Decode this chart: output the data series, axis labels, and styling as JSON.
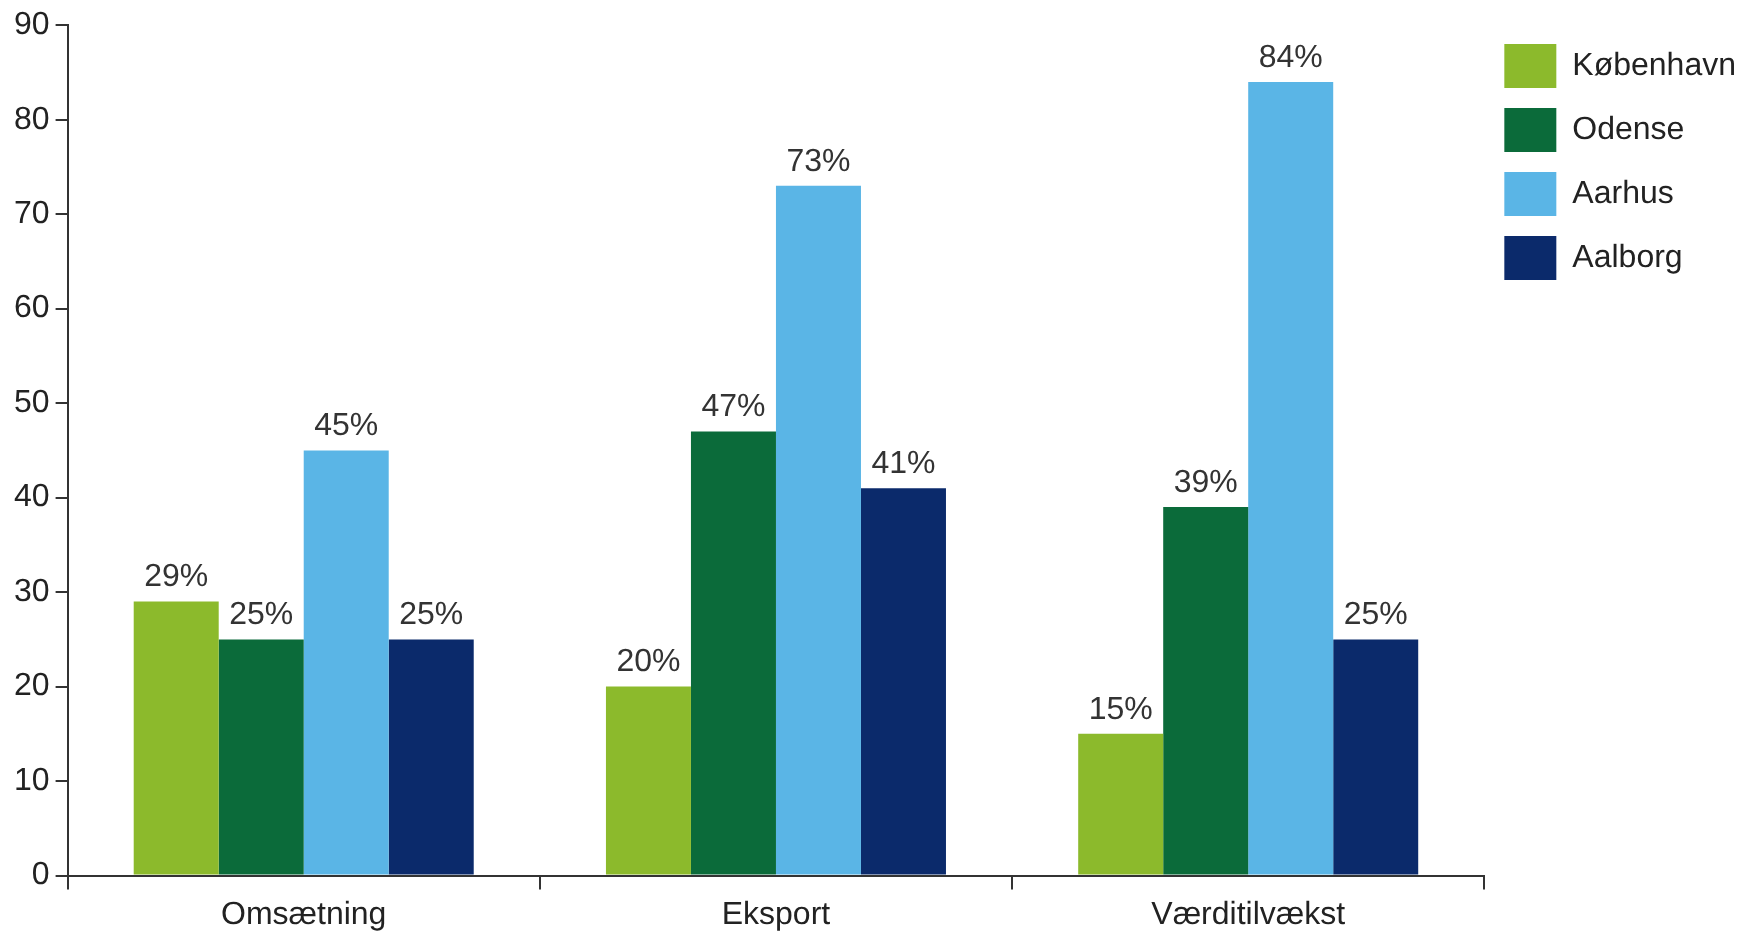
{
  "chart_data": {
    "type": "bar",
    "categories": [
      "Omsætning",
      "Eksport",
      "Værditilvækst"
    ],
    "series": [
      {
        "name": "København",
        "color": "#8cba2c",
        "values": [
          29,
          20,
          15
        ],
        "value_labels": [
          "29%",
          "20%",
          "15%"
        ]
      },
      {
        "name": "Odense",
        "color": "#0b6b3a",
        "values": [
          25,
          47,
          39
        ],
        "value_labels": [
          "25%",
          "47%",
          "39%"
        ]
      },
      {
        "name": "Aarhus",
        "color": "#5ab5e6",
        "values": [
          45,
          73,
          84
        ],
        "value_labels": [
          "45%",
          "73%",
          "84%"
        ]
      },
      {
        "name": "Aalborg",
        "color": "#0b2a6b",
        "values": [
          25,
          41,
          25
        ],
        "value_labels": [
          "25%",
          "41%",
          "25%"
        ]
      }
    ],
    "ylim": [
      0,
      90
    ],
    "yticks": [
      0,
      10,
      20,
      30,
      40,
      50,
      60,
      70,
      80,
      90
    ],
    "grid": false,
    "legend": "right"
  }
}
